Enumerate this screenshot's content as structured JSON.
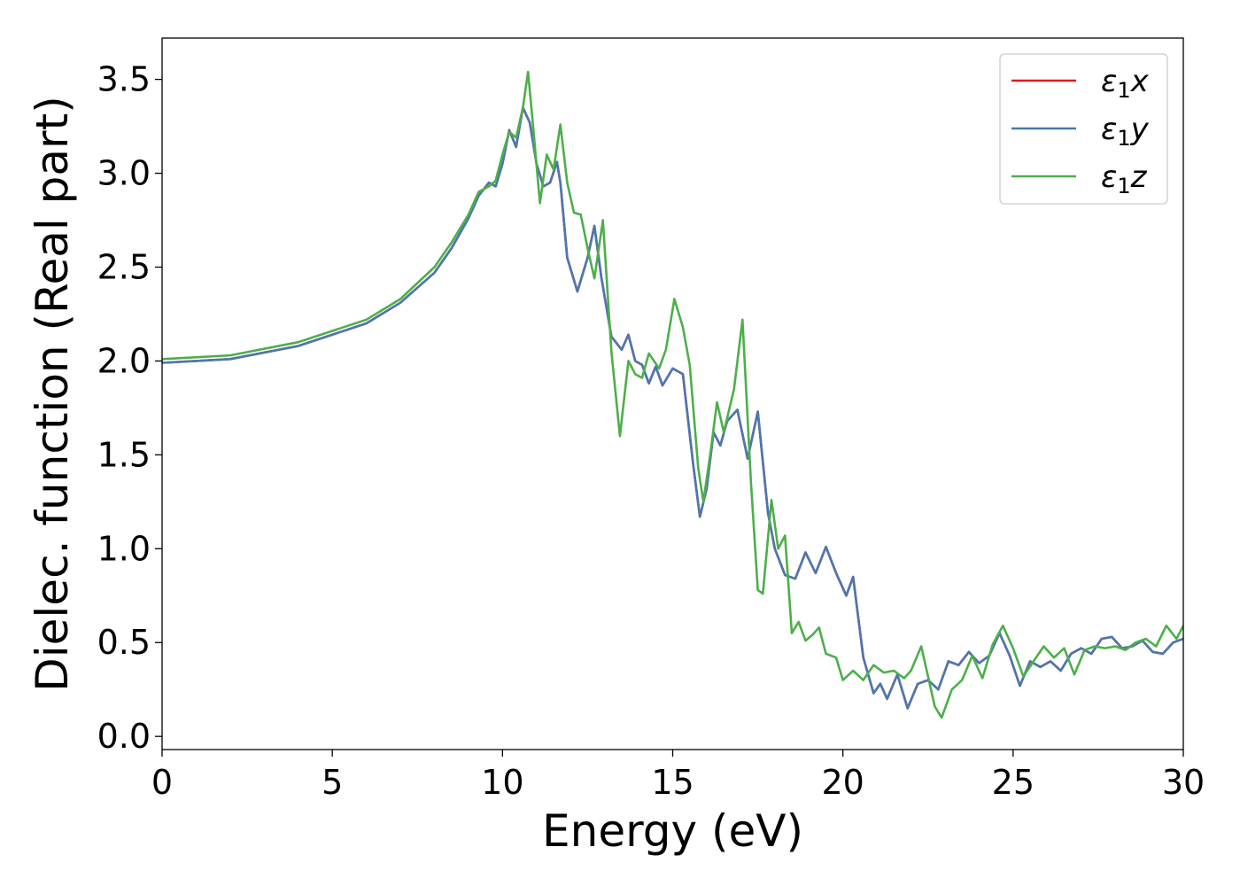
{
  "chart_data": {
    "type": "line",
    "xlabel": "Energy (eV)",
    "ylabel": "Dielec. function (Real part)",
    "xlim": [
      0,
      30
    ],
    "ylim": [
      -0.07,
      3.72
    ],
    "xticks": [
      0,
      5,
      10,
      15,
      20,
      25,
      30
    ],
    "xtick_labels": [
      "0",
      "5",
      "10",
      "15",
      "20",
      "25",
      "30"
    ],
    "yticks": [
      0.0,
      0.5,
      1.0,
      1.5,
      2.0,
      2.5,
      3.0,
      3.5
    ],
    "ytick_labels": [
      "0.0",
      "0.5",
      "1.0",
      "1.5",
      "2.0",
      "2.5",
      "3.0",
      "3.5"
    ],
    "grid": false,
    "legend_position": "top-right",
    "legend": [
      {
        "base": "ε",
        "sub": "1",
        "suffix": "x",
        "color": "#e41a1c"
      },
      {
        "base": "ε",
        "sub": "1",
        "suffix": "y",
        "color": "#4a78b0"
      },
      {
        "base": "ε",
        "sub": "1",
        "suffix": "z",
        "color": "#4daf4a"
      }
    ],
    "series": [
      {
        "name": "ε1x",
        "color": "#e41a1c",
        "x": [
          0,
          2,
          4,
          6,
          7,
          8,
          8.5,
          9,
          9.3,
          9.6,
          9.8,
          10.0,
          10.2,
          10.4,
          10.6,
          10.8,
          11.0,
          11.2,
          11.4,
          11.6,
          11.7,
          11.9,
          12.2,
          12.5,
          12.7,
          12.9,
          13.2,
          13.5,
          13.7,
          13.9,
          14.1,
          14.3,
          14.5,
          14.7,
          15.0,
          15.3,
          15.6,
          15.8,
          16.0,
          16.2,
          16.4,
          16.6,
          16.9,
          17.2,
          17.5,
          17.8,
          18.0,
          18.3,
          18.6,
          18.9,
          19.2,
          19.5,
          19.8,
          20.1,
          20.3,
          20.6,
          20.9,
          21.1,
          21.3,
          21.6,
          21.9,
          22.2,
          22.5,
          22.8,
          23.1,
          23.4,
          23.7,
          24.0,
          24.3,
          24.6,
          24.9,
          25.2,
          25.5,
          25.8,
          26.1,
          26.4,
          26.7,
          27.0,
          27.3,
          27.6,
          27.9,
          28.2,
          28.5,
          28.8,
          29.1,
          29.4,
          29.7,
          30
        ],
        "y": [
          1.99,
          2.01,
          2.08,
          2.2,
          2.31,
          2.47,
          2.6,
          2.76,
          2.88,
          2.95,
          2.93,
          3.05,
          3.23,
          3.14,
          3.35,
          3.27,
          3.05,
          2.93,
          2.95,
          3.06,
          2.95,
          2.55,
          2.37,
          2.55,
          2.72,
          2.45,
          2.13,
          2.06,
          2.14,
          2.0,
          1.98,
          1.88,
          1.97,
          1.87,
          1.96,
          1.93,
          1.45,
          1.17,
          1.32,
          1.62,
          1.55,
          1.68,
          1.74,
          1.48,
          1.73,
          1.19,
          1.0,
          0.86,
          0.84,
          0.98,
          0.87,
          1.01,
          0.87,
          0.75,
          0.85,
          0.42,
          0.23,
          0.28,
          0.2,
          0.33,
          0.15,
          0.28,
          0.3,
          0.25,
          0.4,
          0.38,
          0.45,
          0.39,
          0.43,
          0.55,
          0.43,
          0.27,
          0.4,
          0.37,
          0.4,
          0.35,
          0.44,
          0.47,
          0.44,
          0.52,
          0.53,
          0.47,
          0.48,
          0.51,
          0.45,
          0.44,
          0.5,
          0.52
        ]
      },
      {
        "name": "ε1y",
        "color": "#4a78b0",
        "x": [
          0,
          2,
          4,
          6,
          7,
          8,
          8.5,
          9,
          9.3,
          9.6,
          9.8,
          10.0,
          10.2,
          10.4,
          10.6,
          10.8,
          11.0,
          11.2,
          11.4,
          11.6,
          11.7,
          11.9,
          12.2,
          12.5,
          12.7,
          12.9,
          13.2,
          13.5,
          13.7,
          13.9,
          14.1,
          14.3,
          14.5,
          14.7,
          15.0,
          15.3,
          15.6,
          15.8,
          16.0,
          16.2,
          16.4,
          16.6,
          16.9,
          17.2,
          17.5,
          17.8,
          18.0,
          18.3,
          18.6,
          18.9,
          19.2,
          19.5,
          19.8,
          20.1,
          20.3,
          20.6,
          20.9,
          21.1,
          21.3,
          21.6,
          21.9,
          22.2,
          22.5,
          22.8,
          23.1,
          23.4,
          23.7,
          24.0,
          24.3,
          24.6,
          24.9,
          25.2,
          25.5,
          25.8,
          26.1,
          26.4,
          26.7,
          27.0,
          27.3,
          27.6,
          27.9,
          28.2,
          28.5,
          28.8,
          29.1,
          29.4,
          29.7,
          30
        ],
        "y": [
          1.99,
          2.01,
          2.08,
          2.2,
          2.31,
          2.47,
          2.6,
          2.76,
          2.88,
          2.95,
          2.93,
          3.05,
          3.23,
          3.14,
          3.35,
          3.27,
          3.05,
          2.93,
          2.95,
          3.06,
          2.95,
          2.55,
          2.37,
          2.55,
          2.72,
          2.45,
          2.13,
          2.06,
          2.14,
          2.0,
          1.98,
          1.88,
          1.97,
          1.87,
          1.96,
          1.93,
          1.45,
          1.17,
          1.32,
          1.62,
          1.55,
          1.68,
          1.74,
          1.48,
          1.73,
          1.19,
          1.0,
          0.86,
          0.84,
          0.98,
          0.87,
          1.01,
          0.87,
          0.75,
          0.85,
          0.42,
          0.23,
          0.28,
          0.2,
          0.33,
          0.15,
          0.28,
          0.3,
          0.25,
          0.4,
          0.38,
          0.45,
          0.39,
          0.43,
          0.55,
          0.43,
          0.27,
          0.4,
          0.37,
          0.4,
          0.35,
          0.44,
          0.47,
          0.44,
          0.52,
          0.53,
          0.47,
          0.48,
          0.51,
          0.45,
          0.44,
          0.5,
          0.52
        ]
      },
      {
        "name": "ε1z",
        "color": "#4daf4a",
        "x": [
          0,
          2,
          4,
          6,
          7,
          8,
          8.5,
          9,
          9.3,
          9.6,
          9.8,
          10.0,
          10.2,
          10.4,
          10.6,
          10.75,
          10.9,
          11.1,
          11.3,
          11.5,
          11.7,
          11.9,
          12.1,
          12.3,
          12.5,
          12.7,
          12.95,
          13.2,
          13.45,
          13.7,
          13.9,
          14.1,
          14.3,
          14.6,
          14.8,
          15.05,
          15.3,
          15.5,
          15.75,
          15.9,
          16.1,
          16.3,
          16.5,
          16.8,
          17.05,
          17.3,
          17.5,
          17.65,
          17.9,
          18.1,
          18.3,
          18.5,
          18.7,
          18.9,
          19.1,
          19.3,
          19.5,
          19.8,
          20.0,
          20.3,
          20.6,
          20.9,
          21.2,
          21.5,
          21.8,
          22.0,
          22.3,
          22.5,
          22.7,
          22.9,
          23.2,
          23.5,
          23.8,
          24.1,
          24.4,
          24.7,
          25.0,
          25.3,
          25.6,
          25.9,
          26.2,
          26.5,
          26.8,
          27.1,
          27.4,
          27.7,
          28.0,
          28.3,
          28.6,
          28.9,
          29.2,
          29.5,
          29.8,
          30
        ],
        "y": [
          2.01,
          2.03,
          2.1,
          2.22,
          2.33,
          2.5,
          2.63,
          2.78,
          2.9,
          2.93,
          2.96,
          3.1,
          3.22,
          3.19,
          3.35,
          3.54,
          3.25,
          2.84,
          3.1,
          3.02,
          3.26,
          2.95,
          2.79,
          2.78,
          2.6,
          2.44,
          2.75,
          2.05,
          1.6,
          2.0,
          1.93,
          1.91,
          2.04,
          1.96,
          2.06,
          2.33,
          2.18,
          1.98,
          1.43,
          1.25,
          1.5,
          1.78,
          1.62,
          1.85,
          2.22,
          1.35,
          0.78,
          0.76,
          1.26,
          1.0,
          1.07,
          0.55,
          0.61,
          0.51,
          0.54,
          0.58,
          0.44,
          0.42,
          0.3,
          0.35,
          0.3,
          0.38,
          0.34,
          0.35,
          0.31,
          0.35,
          0.48,
          0.32,
          0.16,
          0.1,
          0.25,
          0.3,
          0.43,
          0.31,
          0.49,
          0.59,
          0.47,
          0.32,
          0.4,
          0.48,
          0.42,
          0.47,
          0.33,
          0.46,
          0.48,
          0.47,
          0.48,
          0.46,
          0.5,
          0.52,
          0.48,
          0.59,
          0.52,
          0.59
        ]
      }
    ]
  }
}
